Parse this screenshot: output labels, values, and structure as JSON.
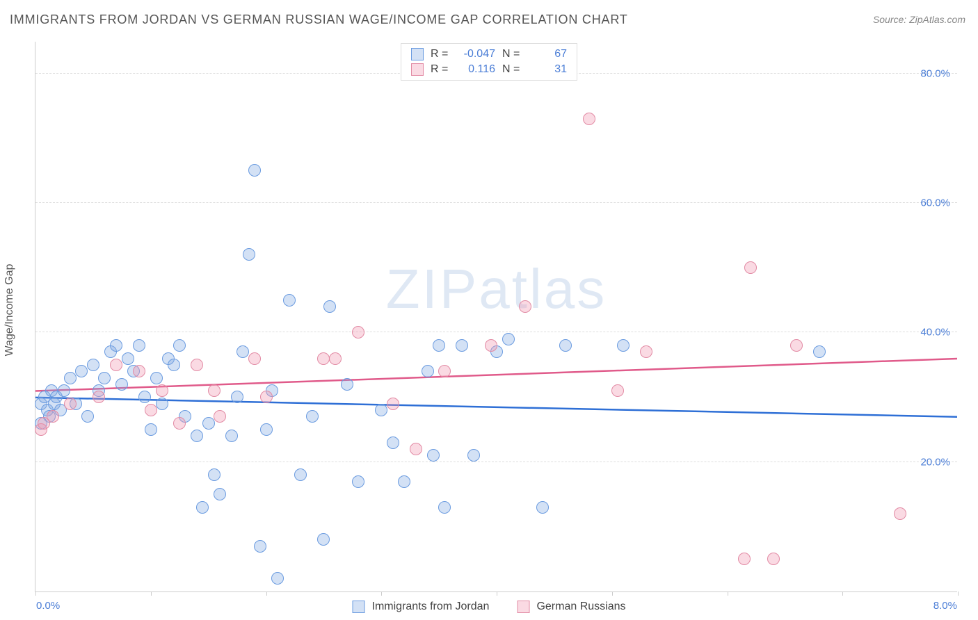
{
  "title": "IMMIGRANTS FROM JORDAN VS GERMAN RUSSIAN WAGE/INCOME GAP CORRELATION CHART",
  "source": "Source: ZipAtlas.com",
  "ylabel": "Wage/Income Gap",
  "watermark": "ZIPatlas",
  "chart": {
    "type": "scatter",
    "xlim": [
      0,
      8
    ],
    "ylim": [
      0,
      85
    ],
    "xticks": [
      0,
      1,
      2,
      3,
      4,
      5,
      6,
      7,
      8
    ],
    "xtick_labels": {
      "0": "0.0%",
      "8": "8.0%"
    },
    "yticks": [
      20,
      40,
      60,
      80
    ],
    "ytick_labels": [
      "20.0%",
      "40.0%",
      "60.0%",
      "80.0%"
    ],
    "background": "#ffffff",
    "grid_color": "#dddddd",
    "tick_label_color": "#4a7dd6",
    "series": [
      {
        "key": "jordan",
        "name": "Immigrants from Jordan",
        "fill": "rgba(130, 170, 225, 0.35)",
        "stroke": "#6a9be0",
        "marker_r": 9,
        "R": "-0.047",
        "N": "67",
        "trend": {
          "y_at_x0": 30,
          "y_at_x8": 27,
          "color": "#2e6fd6",
          "width": 2.5
        },
        "points": [
          [
            0.05,
            29
          ],
          [
            0.08,
            30
          ],
          [
            0.1,
            28
          ],
          [
            0.12,
            27
          ],
          [
            0.14,
            31
          ],
          [
            0.16,
            29
          ],
          [
            0.05,
            26
          ],
          [
            0.18,
            30
          ],
          [
            0.22,
            28
          ],
          [
            0.25,
            31
          ],
          [
            0.3,
            33
          ],
          [
            0.35,
            29
          ],
          [
            0.4,
            34
          ],
          [
            0.45,
            27
          ],
          [
            0.5,
            35
          ],
          [
            0.55,
            31
          ],
          [
            0.6,
            33
          ],
          [
            0.65,
            37
          ],
          [
            0.7,
            38
          ],
          [
            0.75,
            32
          ],
          [
            0.8,
            36
          ],
          [
            0.85,
            34
          ],
          [
            0.9,
            38
          ],
          [
            0.95,
            30
          ],
          [
            1.0,
            25
          ],
          [
            1.05,
            33
          ],
          [
            1.1,
            29
          ],
          [
            1.15,
            36
          ],
          [
            1.2,
            35
          ],
          [
            1.25,
            38
          ],
          [
            1.3,
            27
          ],
          [
            1.4,
            24
          ],
          [
            1.45,
            13
          ],
          [
            1.5,
            26
          ],
          [
            1.55,
            18
          ],
          [
            1.6,
            15
          ],
          [
            1.7,
            24
          ],
          [
            1.75,
            30
          ],
          [
            1.8,
            37
          ],
          [
            1.85,
            52
          ],
          [
            1.9,
            65
          ],
          [
            1.95,
            7
          ],
          [
            2.0,
            25
          ],
          [
            2.05,
            31
          ],
          [
            2.1,
            2
          ],
          [
            2.2,
            45
          ],
          [
            2.3,
            18
          ],
          [
            2.4,
            27
          ],
          [
            2.5,
            8
          ],
          [
            2.55,
            44
          ],
          [
            2.7,
            32
          ],
          [
            2.8,
            17
          ],
          [
            3.0,
            28
          ],
          [
            3.1,
            23
          ],
          [
            3.2,
            17
          ],
          [
            3.4,
            34
          ],
          [
            3.45,
            21
          ],
          [
            3.5,
            38
          ],
          [
            3.55,
            13
          ],
          [
            3.7,
            38
          ],
          [
            3.8,
            21
          ],
          [
            4.0,
            37
          ],
          [
            4.1,
            39
          ],
          [
            4.4,
            13
          ],
          [
            4.6,
            38
          ],
          [
            5.1,
            38
          ],
          [
            6.8,
            37
          ]
        ]
      },
      {
        "key": "german",
        "name": "German Russians",
        "fill": "rgba(240, 150, 175, 0.35)",
        "stroke": "#e28aa4",
        "marker_r": 9,
        "R": "0.116",
        "N": "31",
        "trend": {
          "y_at_x0": 31,
          "y_at_x8": 36,
          "color": "#e05a8a",
          "width": 2.5
        },
        "points": [
          [
            0.05,
            25
          ],
          [
            0.07,
            26
          ],
          [
            0.15,
            27
          ],
          [
            0.3,
            29
          ],
          [
            0.55,
            30
          ],
          [
            0.7,
            35
          ],
          [
            0.9,
            34
          ],
          [
            1.0,
            28
          ],
          [
            1.1,
            31
          ],
          [
            1.25,
            26
          ],
          [
            1.4,
            35
          ],
          [
            1.55,
            31
          ],
          [
            1.6,
            27
          ],
          [
            1.9,
            36
          ],
          [
            2.0,
            30
          ],
          [
            2.5,
            36
          ],
          [
            2.6,
            36
          ],
          [
            2.8,
            40
          ],
          [
            3.1,
            29
          ],
          [
            3.3,
            22
          ],
          [
            3.55,
            34
          ],
          [
            3.95,
            38
          ],
          [
            4.25,
            44
          ],
          [
            4.8,
            73
          ],
          [
            5.05,
            31
          ],
          [
            5.3,
            37
          ],
          [
            6.2,
            50
          ],
          [
            6.4,
            5
          ],
          [
            6.6,
            38
          ],
          [
            7.5,
            12
          ],
          [
            6.15,
            5
          ]
        ]
      }
    ]
  },
  "legend_top": {
    "rows": [
      {
        "swatch_fill": "rgba(130,170,225,0.35)",
        "swatch_stroke": "#6a9be0",
        "R_label": "R =",
        "R_val": "-0.047",
        "N_label": "N =",
        "N_val": "67"
      },
      {
        "swatch_fill": "rgba(240,150,175,0.35)",
        "swatch_stroke": "#e28aa4",
        "R_label": "R =",
        "R_val": "0.116",
        "N_label": "N =",
        "N_val": "31"
      }
    ]
  },
  "legend_bottom": {
    "items": [
      {
        "swatch_fill": "rgba(130,170,225,0.35)",
        "swatch_stroke": "#6a9be0",
        "label": "Immigrants from Jordan"
      },
      {
        "swatch_fill": "rgba(240,150,175,0.35)",
        "swatch_stroke": "#e28aa4",
        "label": "German Russians"
      }
    ]
  }
}
